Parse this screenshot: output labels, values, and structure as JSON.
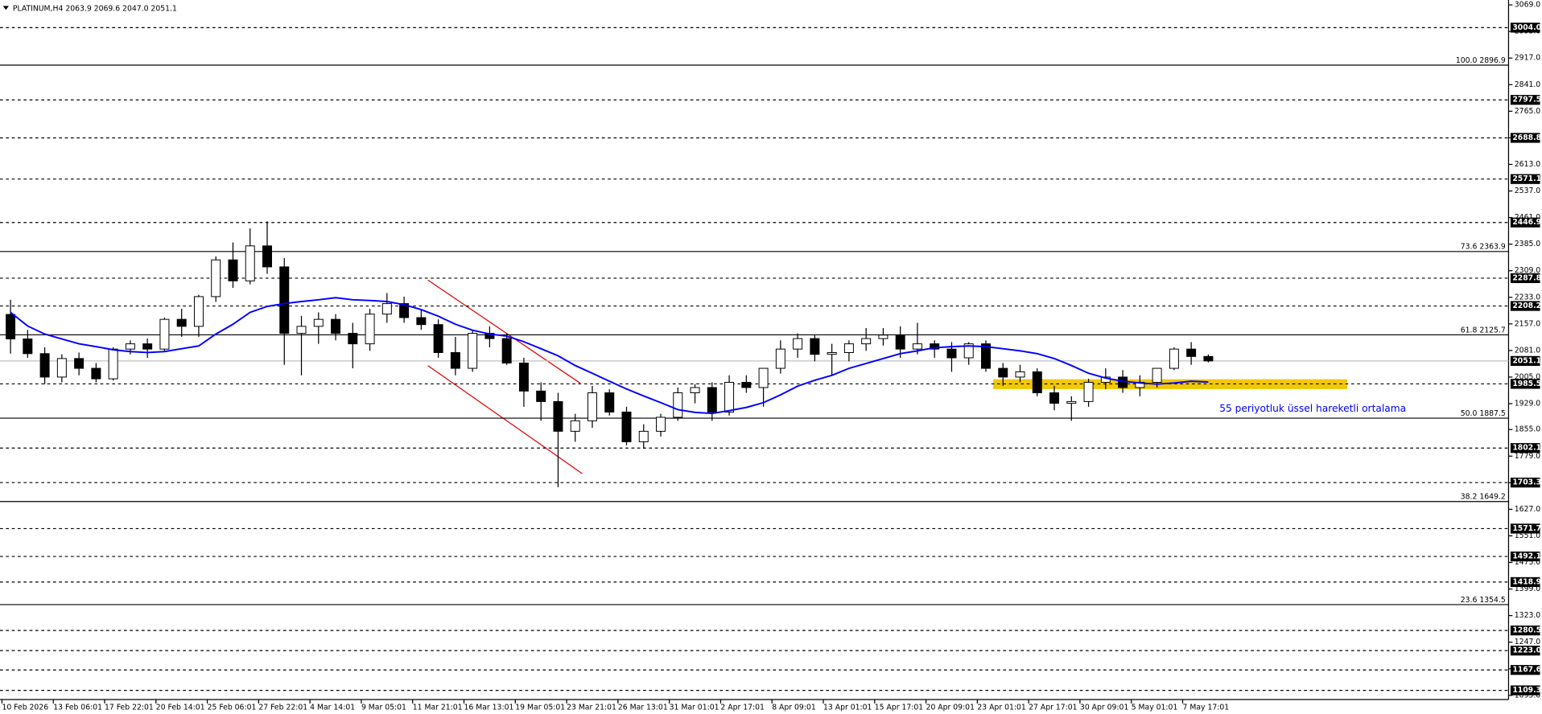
{
  "chart_data": {
    "type": "candlestick",
    "header": {
      "symbol": "PLATINUM,H4",
      "quote": "2063.9 2069.6 2047.0 2051.1"
    },
    "categories": [
      "10 Feb 2026",
      null,
      null,
      "13 Feb 06:01",
      null,
      null,
      "17 Feb 22:01",
      null,
      null,
      "20 Feb 14:01",
      null,
      null,
      "25 Feb 06:01",
      null,
      null,
      "27 Feb 22:01",
      null,
      null,
      "4 Mar 14:01",
      null,
      null,
      "9 Mar 05:01",
      null,
      null,
      "11 Mar 21:01",
      null,
      null,
      "16 Mar 13:01",
      null,
      null,
      "19 Mar 05:01",
      null,
      null,
      "23 Mar 21:01",
      null,
      null,
      "26 Mar 13:01",
      null,
      null,
      "31 Mar 01:01",
      null,
      null,
      "2 Apr 17:01",
      null,
      null,
      "8 Apr 09:01",
      null,
      null,
      "13 Apr 01:01",
      null,
      null,
      "15 Apr 17:01",
      null,
      null,
      "20 Apr 09:01",
      null,
      null,
      "23 Apr 01:01",
      null,
      null,
      "27 Apr 17:01",
      null,
      null,
      "30 Apr 09:01",
      null,
      null,
      "5 May 01:01",
      null,
      null,
      "7 May 17:01",
      null
    ],
    "open": [
      2184,
      2114,
      2072,
      2005,
      2058,
      2030,
      2000,
      2085,
      2100,
      2085,
      2170,
      2150,
      2235,
      2340,
      2280,
      2380,
      2320,
      2130,
      2150,
      2170,
      2130,
      2100,
      2185,
      2215,
      2175,
      2155,
      2075,
      2030,
      2130,
      2115,
      2045,
      1965,
      1935,
      1850,
      1880,
      1960,
      1905,
      1820,
      1850,
      1890,
      1960,
      1975,
      1905,
      1990,
      1975,
      2030,
      2085,
      2115,
      2070,
      2075,
      2100,
      2115,
      2125,
      2085,
      2100,
      2085,
      2060,
      2100,
      2030,
      2005,
      2020,
      1960,
      1930,
      1935,
      1990,
      2005,
      1975,
      1990,
      2030,
      2085,
      2063.9
    ],
    "high": [
      2226,
      2140,
      2090,
      2070,
      2075,
      2045,
      2090,
      2110,
      2115,
      2175,
      2200,
      2240,
      2350,
      2390,
      2430,
      2450,
      2345,
      2180,
      2190,
      2185,
      2160,
      2200,
      2245,
      2235,
      2200,
      2170,
      2120,
      2140,
      2150,
      2130,
      2060,
      1990,
      1960,
      1900,
      1980,
      1970,
      1920,
      1870,
      1900,
      1975,
      1985,
      1990,
      2010,
      2010,
      2030,
      2110,
      2130,
      2125,
      2100,
      2110,
      2145,
      2145,
      2150,
      2160,
      2110,
      2105,
      2105,
      2110,
      2045,
      2040,
      2030,
      1980,
      1950,
      2000,
      2030,
      2025,
      2010,
      2030,
      2090,
      2105,
      2069.6
    ],
    "low": [
      2072,
      2060,
      1985,
      1990,
      2010,
      1990,
      1995,
      2070,
      2060,
      2080,
      2120,
      2120,
      2220,
      2260,
      2270,
      2300,
      2040,
      2010,
      2100,
      2110,
      2030,
      2080,
      2160,
      2160,
      2140,
      2060,
      2010,
      2020,
      2090,
      2040,
      1920,
      1880,
      1690,
      1820,
      1860,
      1895,
      1810,
      1800,
      1835,
      1880,
      1930,
      1880,
      1895,
      1960,
      1920,
      2015,
      2060,
      2050,
      2010,
      2050,
      2080,
      2095,
      2060,
      2070,
      2060,
      2020,
      2040,
      2020,
      1980,
      1990,
      1950,
      1910,
      1880,
      1920,
      1970,
      1960,
      1950,
      1975,
      2025,
      2040,
      2047.0
    ],
    "close": [
      2114,
      2072,
      2005,
      2058,
      2030,
      2000,
      2085,
      2100,
      2085,
      2170,
      2150,
      2235,
      2340,
      2280,
      2380,
      2320,
      2130,
      2150,
      2170,
      2130,
      2100,
      2185,
      2215,
      2175,
      2155,
      2075,
      2030,
      2130,
      2115,
      2045,
      1965,
      1935,
      1850,
      1880,
      1960,
      1905,
      1820,
      1850,
      1890,
      1960,
      1975,
      1905,
      1990,
      1975,
      2030,
      2085,
      2115,
      2070,
      2075,
      2100,
      2115,
      2125,
      2085,
      2100,
      2085,
      2060,
      2100,
      2030,
      2005,
      2020,
      1960,
      1930,
      1935,
      1990,
      2005,
      1975,
      1990,
      2030,
      2085,
      2063.9,
      2051.1
    ],
    "ema": {
      "label": "55 periyotluk üssel hareketli ortalama",
      "color": "#0000ff",
      "values": [
        2190,
        2151,
        2128,
        2114,
        2100,
        2092,
        2083,
        2078,
        2075,
        2078,
        2086,
        2094,
        2128,
        2156,
        2190,
        2207,
        2215,
        2221,
        2226,
        2232,
        2226,
        2224,
        2221,
        2212,
        2198,
        2179,
        2156,
        2139,
        2128,
        2122,
        2106,
        2086,
        2066,
        2038,
        2016,
        1993,
        1971,
        1951,
        1932,
        1912,
        1904,
        1901,
        1909,
        1918,
        1932,
        1954,
        1979,
        1996,
        2010,
        2030,
        2044,
        2058,
        2072,
        2080,
        2089,
        2092,
        2094,
        2092,
        2086,
        2080,
        2072,
        2058,
        2038,
        2016,
        2002,
        1993,
        1988,
        1985,
        1988,
        1993,
        1991
      ]
    },
    "ylim": [
      1083,
      3083
    ],
    "yticks": [
      {
        "value": 3069,
        "label": "3069.0"
      },
      {
        "value": 2993,
        "label": "2993.0"
      },
      {
        "value": 2917,
        "label": "2917.0"
      },
      {
        "value": 2841,
        "label": "2841.0"
      },
      {
        "value": 2765,
        "label": "2765.0"
      },
      {
        "value": 2689,
        "label": "2689.0"
      },
      {
        "value": 2613,
        "label": "2613.0"
      },
      {
        "value": 2537,
        "label": "2537.0"
      },
      {
        "value": 2461,
        "label": "2461.0"
      },
      {
        "value": 2385,
        "label": "2385.0"
      },
      {
        "value": 2309,
        "label": "2309.0"
      },
      {
        "value": 2233,
        "label": "2233.0"
      },
      {
        "value": 2157,
        "label": "2157.0"
      },
      {
        "value": 2081,
        "label": "2081.0"
      },
      {
        "value": 2005,
        "label": "2005.0"
      },
      {
        "value": 1929,
        "label": "1929.0"
      },
      {
        "value": 1855,
        "label": "1855.0"
      },
      {
        "value": 1779,
        "label": "1779.0"
      },
      {
        "value": 1703,
        "label": "1703.0"
      },
      {
        "value": 1627,
        "label": "1627.0"
      },
      {
        "value": 1551,
        "label": "1551.0"
      },
      {
        "value": 1475,
        "label": "1475.0"
      },
      {
        "value": 1399,
        "label": "1399.0"
      },
      {
        "value": 1323,
        "label": "1323.0"
      },
      {
        "value": 1247,
        "label": "1247.0"
      },
      {
        "value": 1171,
        "label": "1171.0"
      },
      {
        "value": 1095,
        "label": "1095.0"
      }
    ],
    "levels": [
      {
        "value": 3004,
        "label": "3004.0"
      },
      2797.5,
      2688.8,
      2571.1,
      2446.9,
      2287.8,
      2208.2,
      1985.5,
      1802.1,
      1703.3,
      1571.7,
      1492.1,
      1418.9,
      1280.5,
      {
        "value": 1223,
        "label": "1223.0"
      },
      1167.6,
      1109.3
    ],
    "bid": 2051.1,
    "fibs": [
      {
        "ratio": "100.0",
        "value": 2896.9
      },
      {
        "ratio": "73.6",
        "value": 2363.9
      },
      {
        "ratio": "61.8",
        "value": 2125.7
      },
      {
        "ratio": "50.0",
        "value": 1887.5
      },
      {
        "ratio": "38.2",
        "value": 1649.2
      },
      {
        "ratio": "23.6",
        "value": 1354.5
      }
    ]
  }
}
